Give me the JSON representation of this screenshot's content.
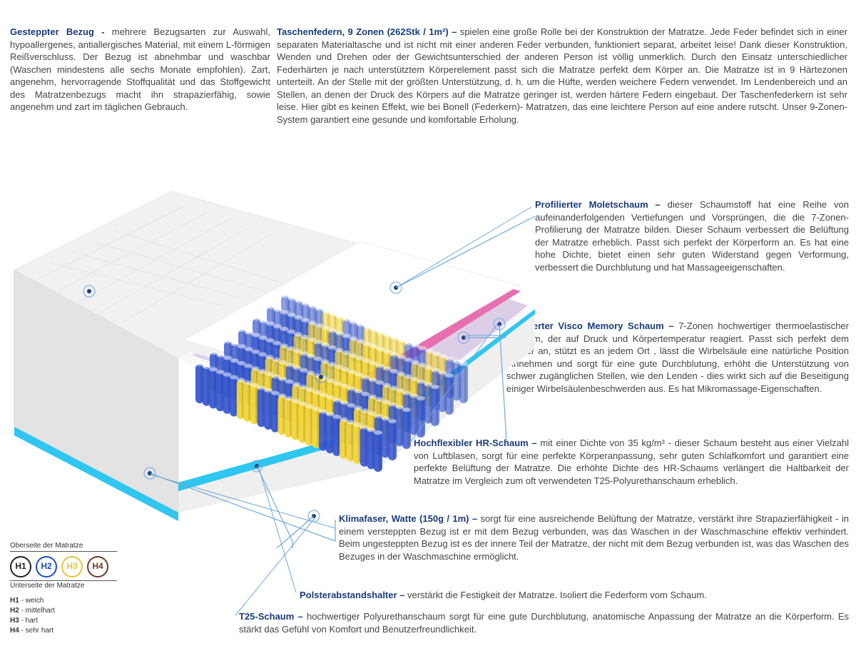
{
  "colors": {
    "title": "#1a3c7b",
    "text": "#444444",
    "line": "#6fa8dc",
    "spring_blue": "#3b5bd1",
    "spring_yellow": "#f1d43a",
    "foam_pink": "#e76fb0",
    "foam_visco": "#d9c9e6",
    "foam_cyan": "#2fc6ef",
    "foam_white": "#f4f4f4",
    "cover": "#e8e8e8"
  },
  "blocks": {
    "bezug": {
      "title": "Gesteppter Bezug - ",
      "body": "mehrere Bezugsarten zur Auswahl, hypoallergenes, antiallergisches Material, mit einem L-förmigen Reißverschluss. Der Bezug ist abnehmbar und waschbar (Waschen mindestens alle sechs Monate empfohlen). Zart, angenehm, hervorragende Stoffqualität und das Stoffgewicht des Matratzenbezugs macht ihn strapazierfähig, sowie angenehm und zart im täglichen Gebrauch."
    },
    "federn": {
      "title": "Taschenfedern, 9 Zonen (262Stk / 1m²) – ",
      "body": "spielen eine große Rolle bei der Konstruktion der Matratze. Jede Feder befindet sich in einer separaten Materialtasche und ist nicht mit einer anderen Feder verbunden, funktioniert separat, arbeitet leise! Dank dieser Konstruktion, Wenden und Drehen oder der Gewichtsunterschied der anderen Person ist völlig unmerklich. Durch den Einsatz unterschiedlicher Federhärten je nach unterstütztem Körperelement passt sich die Matratze perfekt dem Körper an. Die Matratze ist in 9 Härtezonen unterteilt. An der Stelle mit der größten Unterstützung, d. h. um die Hüfte, werden weichere Federn verwendet. Im Lendenbereich und an Stellen, an denen der Druck des Körpers auf die Matratze geringer ist, werden härtere Federn eingebaut. Der Taschenfederkern ist sehr leise. Hier gibt es keinen Effekt, wie bei Bonell (Federkern)- Matratzen, das eine leichtere Person auf eine andere rutscht. Unser 9-Zonen-System garantiert eine gesunde und komfortable Erholung."
    },
    "molet": {
      "title": "Profilierter Moletschaum – ",
      "body": "dieser Schaumstoff hat eine Reihe von aufeinanderfolgenden Vertiefungen und Vorsprüngen, die die 7-Zonen-Profilierung der Matratze bilden. Dieser Schaum verbessert die Belüftung der Matratze erheblich. Passt sich perfekt der Körperform an. Es hat eine hohe Dichte, bietet einen sehr guten Widerstand gegen Verformung, verbessert die Durchblutung und hat Massageeigenschaften."
    },
    "visco": {
      "title": "Profilierter Visco Memory Schaum – ",
      "body": "7-Zonen hochwertiger thermoelastischer Schaum, der auf Druck und Körpertemperatur reagiert. Passt sich perfekt dem Körper an, stützt es an jedem Ort , lässt die Wirbelsäule eine natürliche Position einnehmen und sorgt für eine gute Durchblutung, erhöht die Unterstützung von schwer zugänglichen Stellen, wie den Lenden - dies wirkt sich auf die Beseitigung einiger Wirbelsäulenbeschwerden aus. Es hat Mikromassage-Eigenschaften."
    },
    "hr": {
      "title": "Hochflexibler HR-Schaum – ",
      "body": "mit einer Dichte von 35 kg/m³ - dieser Schaum besteht aus einer Vielzahl von Luftblasen, sorgt für eine perfekte Körperanpassung, sehr guten Schlafkomfort und garantiert eine perfekte Belüftung der Matratze. Die erhöhte Dichte des HR-Schaums verlängert die Haltbarkeit der Matratze im Vergleich zum oft verwendeten T25-Polyurethanschaum erheblich."
    },
    "klima": {
      "title": "Klimafaser, Watte (150g / 1m) – ",
      "body": "sorgt für eine ausreichende Belüftung der Matratze, verstärkt ihre Strapazierfähigkeit - in einem versteppten Bezug ist er mit dem Bezug verbunden, was das Waschen in der Waschmaschine effektiv verhindert. Beim ungesteppten Bezug ist es der innere Teil der Matratze, der nicht mit dem Bezug verbunden ist, was das Waschen des Bezuges in der Waschmaschine ermöglicht."
    },
    "polster": {
      "title": "Polsterabstandshalter – ",
      "body": "verstärkt die Festigkeit der Matratze. Isoliert die Federform vom Schaum."
    },
    "t25": {
      "title": "T25-Schaum – ",
      "body": "hochwertiger Polyurethanschaum sorgt für eine gute Durchblutung, anatomische Anpassung der Matratze an die Körperform. Es stärkt das Gefühl von Komfort und Benutzerfreundlichkeit."
    }
  },
  "legend": {
    "top": "Oberseite der Matratze",
    "bottom": "Unterseite der Matratze",
    "items": [
      {
        "code": "H1",
        "label": "weich",
        "color": "#222222"
      },
      {
        "code": "H2",
        "label": "mittelhart",
        "color": "#1a4fc1"
      },
      {
        "code": "H3",
        "label": "hart",
        "color": "#e4c63b"
      },
      {
        "code": "H4",
        "label": "sehr hart",
        "color": "#6b3b2a"
      }
    ]
  }
}
